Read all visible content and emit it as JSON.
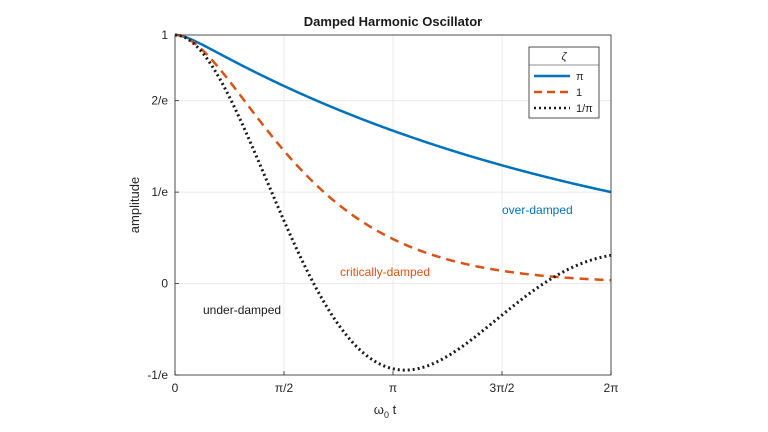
{
  "chart_data": {
    "type": "line",
    "title": "Damped Harmonic Oscillator",
    "xlabel_main": "ω",
    "xlabel_sub": "0",
    "xlabel_tail": " t",
    "ylabel": "amplitude",
    "xlim": [
      0,
      6.2832
    ],
    "ylim": [
      -0.3679,
      1
    ],
    "grid": true,
    "xticks": [
      {
        "value": 0,
        "label": "0"
      },
      {
        "value": 1.5708,
        "label": "π/2"
      },
      {
        "value": 3.1416,
        "label": "π"
      },
      {
        "value": 4.7124,
        "label": "3π/2"
      },
      {
        "value": 6.2832,
        "label": "2π"
      }
    ],
    "yticks": [
      {
        "value": -0.3679,
        "label": "-1/e"
      },
      {
        "value": 0,
        "label": "0"
      },
      {
        "value": 0.3679,
        "label": "1/e"
      },
      {
        "value": 0.7358,
        "label": "2/e"
      },
      {
        "value": 1,
        "label": "1"
      }
    ],
    "legend": {
      "title": "ζ",
      "placement": "top-right",
      "entries": [
        "π",
        "1",
        "1/π"
      ]
    },
    "series": [
      {
        "zeta": 3.14159,
        "color": "#0072BD",
        "style": "solid"
      },
      {
        "zeta": 1,
        "color": "#D95319",
        "style": "dashed"
      },
      {
        "zeta": 0.31831,
        "color": "#1a1a1a",
        "style": "dotted"
      }
    ],
    "annotations": [
      {
        "text": "over-damped",
        "color": "#0072BD"
      },
      {
        "text": "critically-damped",
        "color": "#D95319"
      },
      {
        "text": "under-damped",
        "color": "#1a1a1a"
      }
    ]
  }
}
